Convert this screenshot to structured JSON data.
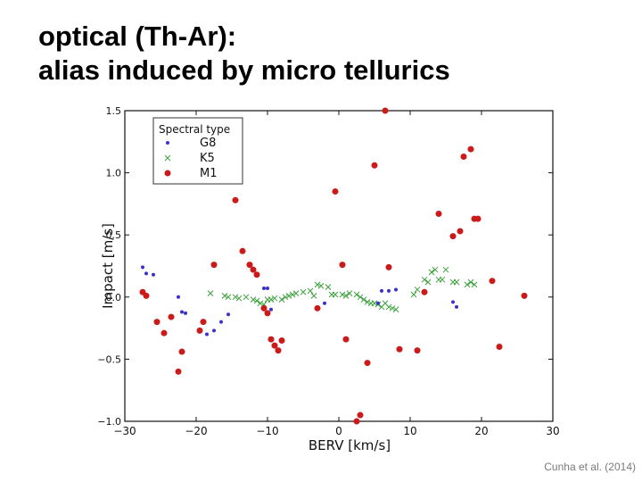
{
  "slide": {
    "title_line1": "optical (Th-Ar):",
    "title_line2": "alias induced by micro tellurics",
    "citation": "Cunha et al. (2014)"
  },
  "chart_data": {
    "type": "scatter",
    "title": "",
    "xlabel": "BERV [km/s]",
    "ylabel": "Impact [m/s]",
    "xlim": [
      -30,
      30
    ],
    "ylim": [
      -1.0,
      1.5
    ],
    "xticks": [
      -30,
      -20,
      -10,
      0,
      10,
      20,
      30
    ],
    "yticks": [
      -1.0,
      -0.5,
      0.0,
      0.5,
      1.0,
      1.5
    ],
    "xtick_labels": [
      "−30",
      "−20",
      "−10",
      "0",
      "10",
      "20",
      "30"
    ],
    "ytick_labels": [
      "−1.0",
      "−0.5",
      "0.0",
      "0.5",
      "1.0",
      "1.5"
    ],
    "grid": false,
    "legend": {
      "title": "Spectral type",
      "position": "top-left"
    },
    "series": [
      {
        "name": "G8",
        "marker": "dot",
        "color": "#3a32c8",
        "x": [
          -27.5,
          -27,
          -26,
          -22.5,
          -22,
          -21.5,
          -18.5,
          -17.5,
          -16.5,
          -15.5,
          -10.5,
          -10,
          -9.5,
          -2,
          5.5,
          6,
          7,
          8,
          16,
          16.5
        ],
        "y": [
          0.24,
          0.19,
          0.18,
          0.0,
          -0.12,
          -0.13,
          -0.3,
          -0.27,
          -0.2,
          -0.14,
          0.07,
          0.07,
          -0.1,
          -0.05,
          -0.05,
          0.05,
          0.05,
          0.06,
          -0.04,
          -0.08
        ]
      },
      {
        "name": "K5",
        "marker": "x",
        "color": "#3aa03a",
        "x": [
          -18,
          -16,
          -15.5,
          -14.5,
          -14,
          -13,
          -12,
          -11.5,
          -11,
          -10.5,
          -10,
          -9.5,
          -9,
          -8,
          -7.5,
          -7,
          -6.5,
          -6,
          -5,
          -4,
          -3.5,
          -3,
          -2.5,
          -1.5,
          -1,
          -0.5,
          0.5,
          1,
          1.5,
          2.5,
          3,
          3.5,
          4,
          4.5,
          5,
          5.5,
          6,
          6.5,
          7,
          7.5,
          8,
          10.5,
          11,
          12,
          12.5,
          13,
          13.5,
          14,
          14.5,
          15,
          16,
          16.5,
          18,
          18.5,
          19
        ],
        "y": [
          0.03,
          0.01,
          0.0,
          0.0,
          -0.01,
          0.0,
          -0.02,
          -0.03,
          -0.05,
          -0.06,
          -0.02,
          -0.02,
          -0.01,
          -0.02,
          0.0,
          0.01,
          0.02,
          0.03,
          0.04,
          0.05,
          0.01,
          0.1,
          0.09,
          0.08,
          0.02,
          0.02,
          0.02,
          0.01,
          0.03,
          0.02,
          0.0,
          -0.02,
          -0.04,
          -0.05,
          -0.05,
          -0.06,
          -0.08,
          -0.05,
          -0.08,
          -0.09,
          -0.1,
          0.02,
          0.06,
          0.14,
          0.12,
          0.2,
          0.22,
          0.14,
          0.14,
          0.22,
          0.12,
          0.12,
          0.1,
          0.12,
          0.1
        ]
      },
      {
        "name": "M1",
        "marker": "circle",
        "color": "#cc1a1a",
        "x": [
          -27.5,
          -27,
          -25.5,
          -24.5,
          -23.5,
          -22.5,
          -22,
          -19.5,
          -19,
          -17.5,
          -14.5,
          -13.5,
          -12.5,
          -12,
          -11.5,
          -10.5,
          -10,
          -9.5,
          -9,
          -8.5,
          -8,
          -3,
          -0.5,
          0.5,
          1,
          2.5,
          3,
          4,
          5,
          6.5,
          7,
          8.5,
          11,
          12,
          14,
          16,
          17,
          17.5,
          18.5,
          19,
          19.5,
          21.5,
          22.5,
          26
        ],
        "y": [
          0.04,
          0.01,
          -0.2,
          -0.29,
          -0.16,
          -0.6,
          -0.44,
          -0.27,
          -0.2,
          0.26,
          0.78,
          0.37,
          0.26,
          0.22,
          0.18,
          -0.09,
          -0.13,
          -0.34,
          -0.39,
          -0.43,
          -0.35,
          -0.09,
          0.85,
          0.26,
          -0.34,
          -1.0,
          -0.95,
          -0.53,
          1.06,
          1.5,
          0.24,
          -0.42,
          -0.43,
          0.04,
          0.67,
          0.49,
          0.53,
          1.13,
          1.19,
          0.63,
          0.63,
          0.13,
          -0.4,
          0.01
        ]
      }
    ]
  }
}
